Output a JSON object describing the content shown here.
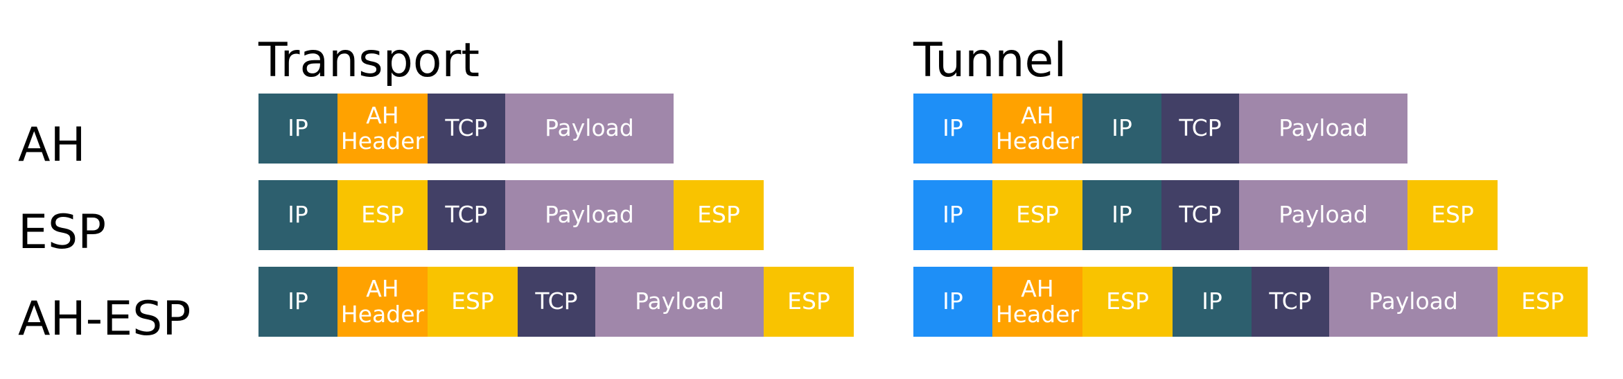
{
  "headings": {
    "transport": "Transport",
    "tunnel": "Tunnel"
  },
  "row_labels": [
    "AH",
    "ESP",
    "AH-ESP"
  ],
  "colors": {
    "ip": "#2d5f6e",
    "ip_new": "#1e8ff7",
    "ah_header": "#ffa200",
    "esp": "#f9c300",
    "tcp": "#424066",
    "payload": "#a087aa"
  },
  "packets": {
    "transport": [
      [
        {
          "type": "ip",
          "label": "IP"
        },
        {
          "type": "ah_header",
          "label": "AH\nHeader"
        },
        {
          "type": "tcp",
          "label": "TCP"
        },
        {
          "type": "payload",
          "label": "Payload"
        }
      ],
      [
        {
          "type": "ip",
          "label": "IP"
        },
        {
          "type": "esp",
          "label": "ESP"
        },
        {
          "type": "tcp",
          "label": "TCP"
        },
        {
          "type": "payload",
          "label": "Payload"
        },
        {
          "type": "esp",
          "label": "ESP"
        }
      ],
      [
        {
          "type": "ip",
          "label": "IP"
        },
        {
          "type": "ah_header",
          "label": "AH\nHeader"
        },
        {
          "type": "esp",
          "label": "ESP"
        },
        {
          "type": "tcp",
          "label": "TCP"
        },
        {
          "type": "payload",
          "label": "Payload"
        },
        {
          "type": "esp",
          "label": "ESP"
        }
      ]
    ],
    "tunnel": [
      [
        {
          "type": "ip_new",
          "label": "IP"
        },
        {
          "type": "ah_header",
          "label": "AH\nHeader"
        },
        {
          "type": "ip",
          "label": "IP"
        },
        {
          "type": "tcp",
          "label": "TCP"
        },
        {
          "type": "payload",
          "label": "Payload"
        }
      ],
      [
        {
          "type": "ip_new",
          "label": "IP"
        },
        {
          "type": "esp",
          "label": "ESP"
        },
        {
          "type": "ip",
          "label": "IP"
        },
        {
          "type": "tcp",
          "label": "TCP"
        },
        {
          "type": "payload",
          "label": "Payload"
        },
        {
          "type": "esp",
          "label": "ESP"
        }
      ],
      [
        {
          "type": "ip_new",
          "label": "IP"
        },
        {
          "type": "ah_header",
          "label": "AH\nHeader"
        },
        {
          "type": "esp",
          "label": "ESP"
        },
        {
          "type": "ip",
          "label": "IP"
        },
        {
          "type": "tcp",
          "label": "TCP"
        },
        {
          "type": "payload",
          "label": "Payload"
        },
        {
          "type": "esp",
          "label": "ESP"
        }
      ]
    ]
  }
}
